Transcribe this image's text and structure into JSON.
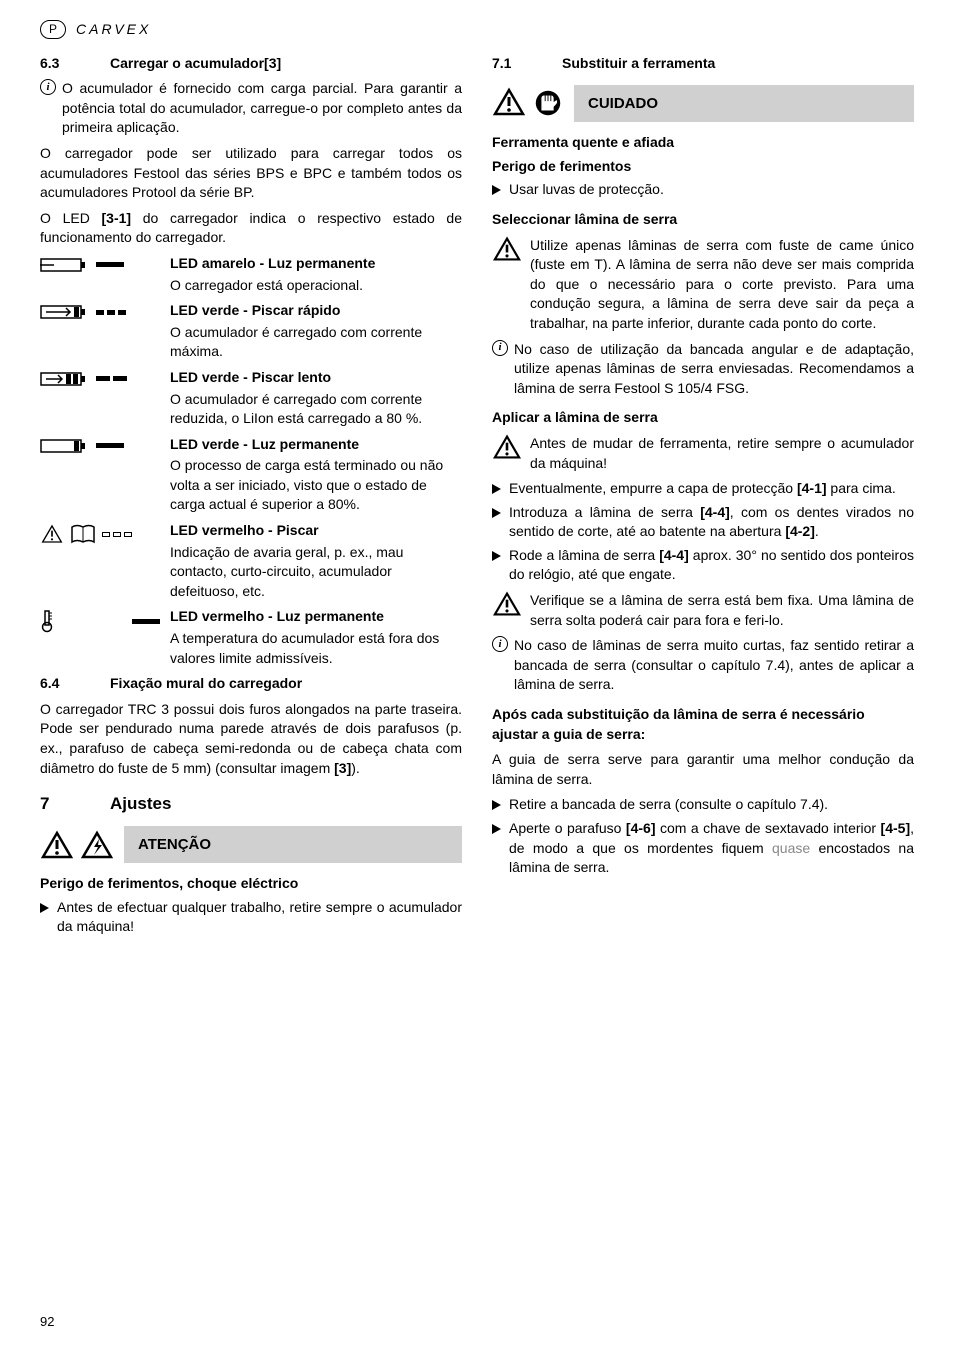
{
  "header": {
    "lang": "P",
    "brand": "CARVEX"
  },
  "left": {
    "s63": {
      "num": "6.3",
      "title": "Carregar o acumulador[3]"
    },
    "info1": "O acumulador é fornecido com carga parcial. Para garantir a potência total do acumulador, carregue-o por completo antes da primeira aplicação.",
    "p1": "O carregador pode ser utilizado para carregar todos os acumuladores Festool das séries BPS e BPC e também todos os acumuladores Protool da série BP.",
    "p2": "O LED [3-1] do carregador indica o respectivo estado de funcionamento do carregador.",
    "led": [
      {
        "title": "LED amarelo - Luz permanente",
        "desc": "O carregador está operacional."
      },
      {
        "title": "LED verde - Piscar rápido",
        "desc": "O acumulador é carregado com corrente máxima."
      },
      {
        "title": "LED verde - Piscar lento",
        "desc": "O acumulador é carregado com corrente reduzida, o LiIon está carregado a 80 %."
      },
      {
        "title": "LED verde - Luz permanente",
        "desc": "O processo de carga está terminado ou não volta a ser iniciado, visto que o estado de carga actual é superior a 80%."
      },
      {
        "title": "LED vermelho - Piscar",
        "desc": "Indicação de avaria geral, p. ex., mau contacto, curto-circuito, acumulador defeituoso, etc."
      },
      {
        "title": "LED vermelho - Luz permanente",
        "desc": "A temperatura do acumulador está fora dos valores limite admissíveis."
      }
    ],
    "s64": {
      "num": "6.4",
      "title": "Fixação mural do carregador"
    },
    "p3": "O carregador TRC 3 possui dois furos alongados na parte traseira. Pode ser pendurado numa parede através de dois parafusos (p. ex., parafuso de cabeça semi-redonda ou de cabeça chata com diâmetro do fuste de 5 mm) (consultar imagem [3]).",
    "ch7": {
      "num": "7",
      "title": "Ajustes"
    },
    "warn7": {
      "label": "ATENÇÃO",
      "heading": "Perigo de ferimentos, choque eléctrico",
      "bullet": "Antes de efectuar qualquer trabalho, retire sempre o acumulador da máquina!"
    }
  },
  "right": {
    "s71": {
      "num": "7.1",
      "title": "Substituir a ferramenta"
    },
    "warn71": {
      "label": "CUIDADO",
      "h1": "Ferramenta quente e afiada",
      "h2": "Perigo de ferimentos",
      "bullet": "Usar luvas de protecção."
    },
    "sel": {
      "heading": "Seleccionar lâmina de serra",
      "warn": "Utilize apenas lâminas de serra com fuste de came único (fuste em T). A lâmina de serra não deve ser mais comprida do que o necessário para o corte previsto. Para uma condução segura, a lâmina de serra deve sair da peça a trabalhar, na parte inferior, durante cada ponto do corte.",
      "info": "No caso de utilização da bancada angular e de adaptação, utilize apenas lâminas de serra enviesadas. Recomendamos a lâmina de serra Festool S 105/4 FSG."
    },
    "apl": {
      "heading": "Aplicar a lâmina de serra",
      "warn": "Antes de mudar de ferramenta, retire sempre o acumulador da máquina!",
      "b1": "Eventualmente, empurre a capa de protecção [4-1] para cima.",
      "b2": "Introduza a lâmina de serra [4-4], com os dentes virados no sentido de corte, até ao batente na abertura [4-2].",
      "b3": "Rode a lâmina de serra [4-4] aprox. 30° no sentido dos ponteiros do relógio, até que engate.",
      "warn2": "Verifique se a lâmina de serra está bem fixa. Uma lâmina de serra solta poderá cair para fora e feri-lo.",
      "info": "No caso de lâminas de serra muito curtas, faz sentido retirar a bancada de serra (consultar o capítulo 7.4), antes de aplicar a lâmina de serra."
    },
    "apos": {
      "heading": "Após cada substituição da lâmina de serra é necessário ajustar a guia de serra:",
      "p": "A guia de serra serve para garantir uma melhor condução da lâmina de serra.",
      "b1": "Retire a bancada de serra (consulte o capítulo 7.4).",
      "b2_a": "Aperte o parafuso [4-6] com a chave de sextavado interior [4-5], de modo a que os mordentes fiquem ",
      "b2_q": "quase",
      "b2_b": " encostados na lâmina de serra."
    }
  },
  "pageNumber": "92"
}
